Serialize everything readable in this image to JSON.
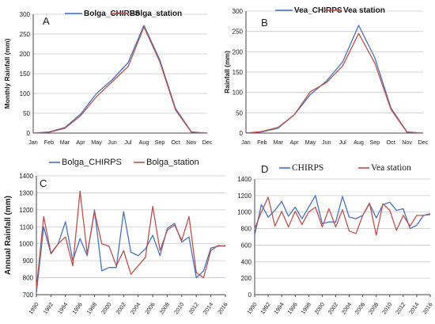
{
  "chart_data": [
    {
      "panel": "A",
      "type": "line",
      "categories": [
        "Jan",
        "Feb",
        "Mar",
        "Apr",
        "May",
        "Jun",
        "Jul",
        "Aug",
        "Sep",
        "Oct",
        "Nov",
        "Dec"
      ],
      "series": [
        {
          "name": "Bolga_CHIRPS",
          "color": "#4472c4",
          "values": [
            0,
            3,
            14,
            48,
            100,
            135,
            178,
            272,
            185,
            62,
            3,
            0
          ]
        },
        {
          "name": "Bolga_station",
          "color": "#c0504d",
          "values": [
            0,
            2,
            12,
            44,
            92,
            130,
            168,
            268,
            180,
            58,
            2,
            0
          ]
        }
      ],
      "ylabel": "Monthly Rainfall (mm)",
      "ylim": [
        0,
        300
      ],
      "yticks": [
        0,
        50,
        100,
        150,
        200,
        250,
        300
      ],
      "grid": true,
      "legend": "top-center"
    },
    {
      "panel": "B",
      "type": "line",
      "categories": [
        "Jan",
        "Feb",
        "Mar",
        "Apr",
        "May",
        "Jun",
        "Jul",
        "Aug",
        "Sep",
        "Oct",
        "Nov",
        "Dec"
      ],
      "series": [
        {
          "name": "Vea_CHIRPS",
          "color": "#4472c4",
          "values": [
            0,
            3,
            12,
            45,
            95,
            128,
            175,
            265,
            185,
            62,
            3,
            0
          ]
        },
        {
          "name": "Vea station",
          "color": "#c0504d",
          "values": [
            0,
            4,
            14,
            45,
            102,
            124,
            165,
            245,
            172,
            58,
            2,
            0
          ]
        }
      ],
      "ylabel": "Rainfall (mm)",
      "ylim": [
        0,
        300
      ],
      "yticks": [
        0,
        50,
        100,
        150,
        200,
        250,
        300
      ],
      "grid": true,
      "legend": "top-center"
    },
    {
      "panel": "C",
      "type": "line",
      "x": [
        1990,
        1991,
        1992,
        1993,
        1994,
        1995,
        1996,
        1997,
        1998,
        1999,
        2000,
        2001,
        2002,
        2003,
        2004,
        2005,
        2006,
        2007,
        2008,
        2009,
        2010,
        2011,
        2012,
        2013,
        2014,
        2015,
        2016
      ],
      "xticks": [
        "1990",
        "1992",
        "1994",
        "1996",
        "1998",
        "2000",
        "2002",
        "2004",
        "2006",
        "2008",
        "2010",
        "2012",
        "2014",
        "2016"
      ],
      "series": [
        {
          "name": "Bolga_CHIRPS",
          "color": "#4472c4",
          "values": [
            710,
            1100,
            940,
            1000,
            1130,
            900,
            1030,
            930,
            1200,
            840,
            860,
            860,
            1190,
            950,
            930,
            970,
            1050,
            930,
            1090,
            1120,
            1010,
            1040,
            800,
            840,
            975,
            985,
            990
          ]
        },
        {
          "name": "Bolga_station",
          "color": "#c0504d",
          "values": [
            735,
            1160,
            945,
            1000,
            1040,
            870,
            1310,
            940,
            1190,
            1000,
            985,
            870,
            960,
            820,
            870,
            920,
            1220,
            960,
            1080,
            1110,
            1020,
            1160,
            830,
            800,
            960,
            990,
            985
          ]
        }
      ],
      "ylabel": "Annual Rainfall (mm)",
      "ylim": [
        700,
        1400
      ],
      "yticks": [
        700,
        800,
        900,
        1000,
        1100,
        1200,
        1300,
        1400
      ],
      "grid": true,
      "legend": "top-center"
    },
    {
      "panel": "D",
      "type": "line",
      "x": [
        1990,
        1991,
        1992,
        1993,
        1994,
        1995,
        1996,
        1997,
        1998,
        1999,
        2000,
        2001,
        2002,
        2003,
        2004,
        2005,
        2006,
        2007,
        2008,
        2009,
        2010,
        2011,
        2012,
        2013,
        2014,
        2015,
        2016
      ],
      "xticks": [
        "1990",
        "1992",
        "1994",
        "1996",
        "1998",
        "2000",
        "2002",
        "2004",
        "2006",
        "2008",
        "2010",
        "2012",
        "2014",
        "2016"
      ],
      "series": [
        {
          "name": "CHIRPS",
          "color": "#4472c4",
          "values": [
            720,
            1090,
            940,
            1020,
            1130,
            950,
            1060,
            920,
            1060,
            1200,
            860,
            880,
            880,
            1190,
            940,
            920,
            960,
            1100,
            930,
            1090,
            1120,
            1020,
            1040,
            800,
            840,
            960,
            980
          ]
        },
        {
          "name": "Vea station",
          "color": "#c0504d",
          "values": [
            800,
            1000,
            1180,
            830,
            1010,
            820,
            1010,
            850,
            1000,
            1060,
            820,
            1040,
            820,
            1030,
            770,
            740,
            960,
            1110,
            720,
            1100,
            1020,
            780,
            960,
            830,
            960,
            960,
            970
          ]
        }
      ],
      "ylim": [
        0,
        1400
      ],
      "yticks": [
        0,
        200,
        400,
        600,
        800,
        1000,
        1200,
        1400
      ],
      "grid": true,
      "legend": "top-center"
    }
  ]
}
